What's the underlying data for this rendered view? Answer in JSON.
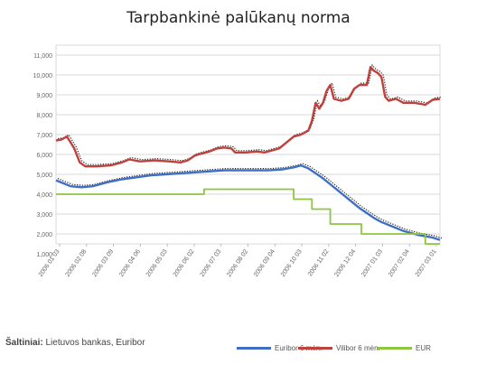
{
  "chart_data": {
    "type": "line",
    "title": "Tarpbankinė palūkanų norma",
    "ylim": [
      1.5,
      11.5
    ],
    "yticks": [
      "11,000",
      "10,000",
      "9,000",
      "8,000",
      "7,000",
      "6,000",
      "5,000",
      "4,000",
      "3,000",
      "2,000",
      "1,000"
    ],
    "yvals": [
      11,
      10,
      9,
      8,
      7,
      6,
      5,
      4,
      3,
      2,
      1
    ],
    "x_tick_labels": [
      "2006 01 03",
      "2006 02 08",
      "2006 03 09",
      "2006 04 06",
      "2006 05 03",
      "2006 06 02",
      "2006 07 03",
      "2006 08 02",
      "2006 09 04",
      "2006 10 03",
      "2006 11 02",
      "2006 12 04",
      "2007 01 03",
      "2007 02 04",
      "2007 03 01"
    ],
    "grid": true,
    "legend_position": "bottom",
    "series": [
      {
        "name": "Euribor 6 mėn.",
        "color": "#3f6fc4",
        "values": [
          [
            0,
            4.7
          ],
          [
            4,
            4.55
          ],
          [
            8,
            4.4
          ],
          [
            14,
            4.35
          ],
          [
            20,
            4.4
          ],
          [
            28,
            4.6
          ],
          [
            36,
            4.75
          ],
          [
            44,
            4.85
          ],
          [
            52,
            4.95
          ],
          [
            60,
            5.0
          ],
          [
            68,
            5.05
          ],
          [
            76,
            5.1
          ],
          [
            84,
            5.15
          ],
          [
            92,
            5.2
          ],
          [
            100,
            5.2
          ],
          [
            108,
            5.2
          ],
          [
            116,
            5.2
          ],
          [
            124,
            5.25
          ],
          [
            130,
            5.35
          ],
          [
            134,
            5.45
          ],
          [
            138,
            5.3
          ],
          [
            142,
            5.05
          ],
          [
            146,
            4.8
          ],
          [
            150,
            4.5
          ],
          [
            154,
            4.2
          ],
          [
            158,
            3.9
          ],
          [
            162,
            3.6
          ],
          [
            166,
            3.3
          ],
          [
            170,
            3.05
          ],
          [
            174,
            2.8
          ],
          [
            178,
            2.6
          ],
          [
            182,
            2.45
          ],
          [
            186,
            2.3
          ],
          [
            190,
            2.15
          ],
          [
            194,
            2.05
          ],
          [
            198,
            1.95
          ],
          [
            202,
            1.88
          ],
          [
            206,
            1.82
          ],
          [
            210,
            1.7
          ]
        ]
      },
      {
        "name": "Vilibor 6 mėn.",
        "color": "#c0403c",
        "values": [
          [
            0,
            6.7
          ],
          [
            3,
            6.75
          ],
          [
            6,
            6.9
          ],
          [
            8,
            6.6
          ],
          [
            10,
            6.3
          ],
          [
            13,
            5.6
          ],
          [
            16,
            5.4
          ],
          [
            22,
            5.4
          ],
          [
            30,
            5.45
          ],
          [
            36,
            5.6
          ],
          [
            40,
            5.75
          ],
          [
            46,
            5.65
          ],
          [
            54,
            5.7
          ],
          [
            62,
            5.65
          ],
          [
            68,
            5.6
          ],
          [
            72,
            5.7
          ],
          [
            76,
            5.95
          ],
          [
            80,
            6.05
          ],
          [
            84,
            6.15
          ],
          [
            88,
            6.3
          ],
          [
            92,
            6.35
          ],
          [
            96,
            6.3
          ],
          [
            98,
            6.1
          ],
          [
            104,
            6.1
          ],
          [
            110,
            6.15
          ],
          [
            114,
            6.1
          ],
          [
            118,
            6.2
          ],
          [
            122,
            6.3
          ],
          [
            126,
            6.6
          ],
          [
            130,
            6.9
          ],
          [
            134,
            7.0
          ],
          [
            138,
            7.2
          ],
          [
            140,
            7.7
          ],
          [
            142,
            8.6
          ],
          [
            144,
            8.3
          ],
          [
            146,
            8.6
          ],
          [
            148,
            9.2
          ],
          [
            150,
            9.5
          ],
          [
            152,
            8.8
          ],
          [
            156,
            8.7
          ],
          [
            160,
            8.8
          ],
          [
            163,
            9.3
          ],
          [
            166,
            9.5
          ],
          [
            170,
            9.5
          ],
          [
            172,
            10.4
          ],
          [
            174,
            10.2
          ],
          [
            176,
            10.1
          ],
          [
            178,
            9.9
          ],
          [
            180,
            8.9
          ],
          [
            182,
            8.7
          ],
          [
            186,
            8.8
          ],
          [
            190,
            8.6
          ],
          [
            196,
            8.6
          ],
          [
            202,
            8.5
          ],
          [
            206,
            8.75
          ],
          [
            210,
            8.8
          ]
        ]
      },
      {
        "name": "EUR",
        "color": "#8dc63f",
        "values": [
          [
            0,
            4.0
          ],
          [
            81,
            4.0
          ],
          [
            81,
            4.25
          ],
          [
            130,
            4.25
          ],
          [
            130,
            3.75
          ],
          [
            140,
            3.75
          ],
          [
            140,
            3.25
          ],
          [
            150,
            3.25
          ],
          [
            150,
            2.5
          ],
          [
            167,
            2.5
          ],
          [
            167,
            2.0
          ],
          [
            202,
            2.0
          ],
          [
            202,
            1.5
          ],
          [
            210,
            1.5
          ]
        ]
      }
    ]
  },
  "source": {
    "label": "Šaltiniai:",
    "text": "Lietuvos bankas, Euribor"
  }
}
